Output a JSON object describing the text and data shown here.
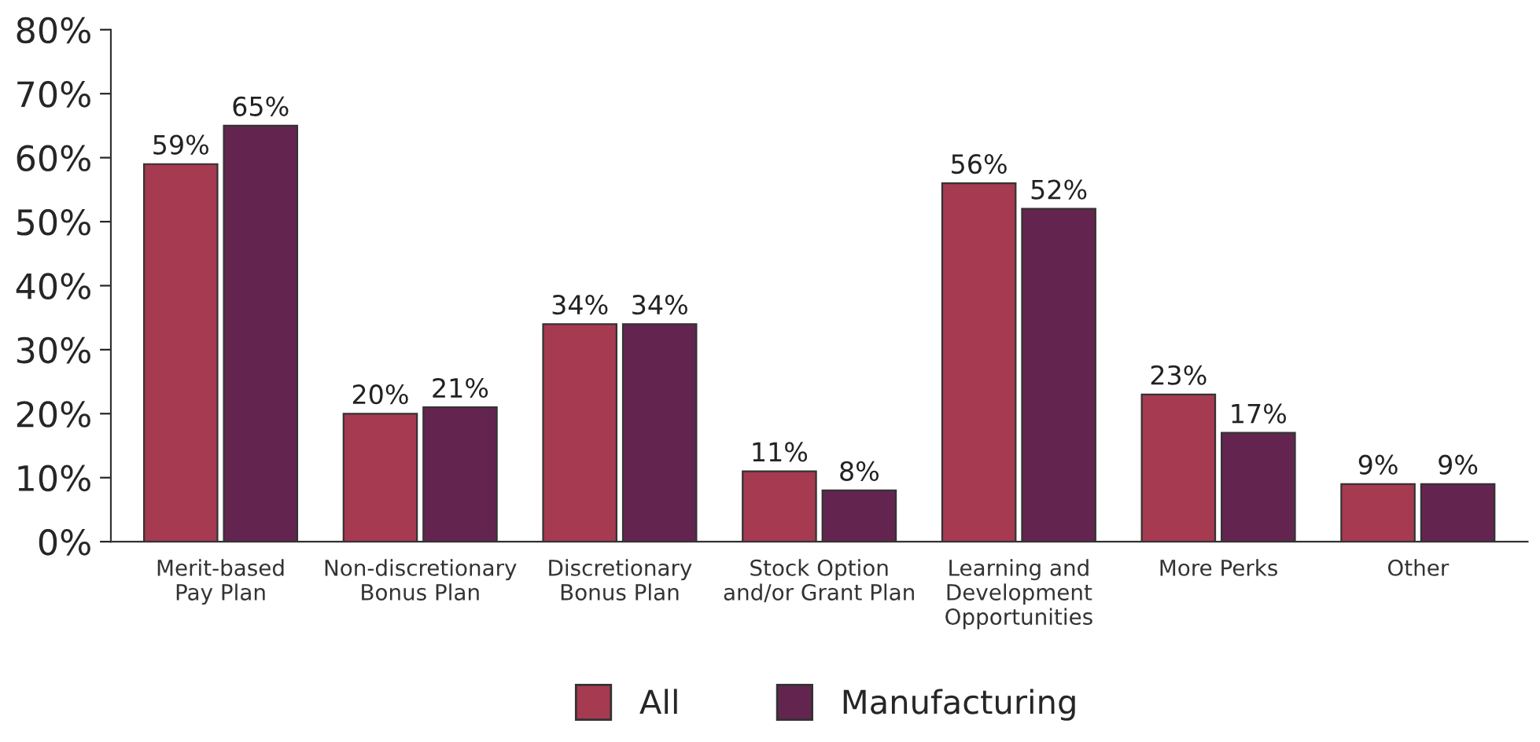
{
  "chart_data": {
    "type": "bar",
    "categories": [
      "Merit-based\nPay Plan",
      "Non-discretionary\nBonus Plan",
      "Discretionary\nBonus Plan",
      "Stock Option\nand/or Grant Plan",
      "Learning and\nDevelopment\nOpportunities",
      "More Perks",
      "Other"
    ],
    "series": [
      {
        "name": "All",
        "color": "#a63a50",
        "values": [
          59,
          20,
          34,
          11,
          56,
          23,
          9
        ],
        "value_labels": [
          "59%",
          "20%",
          "34%",
          "11%",
          "56%",
          "23%",
          "9%"
        ]
      },
      {
        "name": "Manufacturing",
        "color": "#63254f",
        "values": [
          65,
          21,
          34,
          8,
          52,
          17,
          9
        ],
        "value_labels": [
          "65%",
          "21%",
          "34%",
          "8%",
          "52%",
          "17%",
          "9%"
        ]
      }
    ],
    "ylim": [
      0,
      80
    ],
    "yticks": [
      {
        "value": 0,
        "label": "0%"
      },
      {
        "value": 10,
        "label": "10%"
      },
      {
        "value": 20,
        "label": "20%"
      },
      {
        "value": 30,
        "label": "30%"
      },
      {
        "value": 40,
        "label": "40%"
      },
      {
        "value": 50,
        "label": "50%"
      },
      {
        "value": 60,
        "label": "60%"
      },
      {
        "value": 70,
        "label": "70%"
      },
      {
        "value": 80,
        "label": "80%"
      }
    ],
    "legend": "bottom",
    "grid": false
  }
}
